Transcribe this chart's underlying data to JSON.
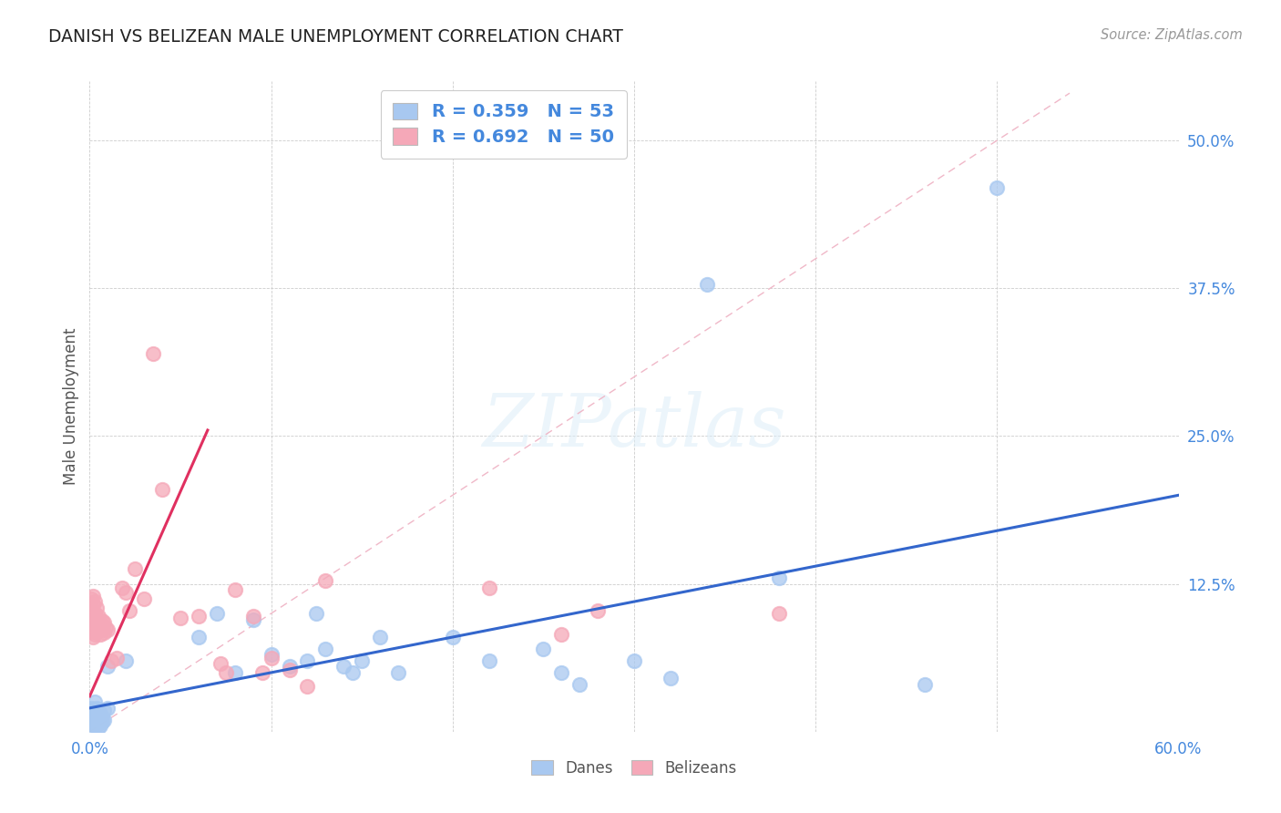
{
  "title": "DANISH VS BELIZEAN MALE UNEMPLOYMENT CORRELATION CHART",
  "source": "Source: ZipAtlas.com",
  "ylabel": "Male Unemployment",
  "xlim": [
    0.0,
    0.6
  ],
  "ylim": [
    0.0,
    0.55
  ],
  "danes_R": "0.359",
  "danes_N": "53",
  "belizeans_R": "0.692",
  "belizeans_N": "50",
  "danes_color": "#a8c8f0",
  "belizeans_color": "#f5a8b8",
  "danes_line_color": "#3366cc",
  "belizeans_line_color": "#e03060",
  "diagonal_color": "#f0b8c8",
  "background_color": "#ffffff",
  "danes_scatter": [
    [
      0.001,
      0.02
    ],
    [
      0.001,
      0.015
    ],
    [
      0.001,
      0.01
    ],
    [
      0.001,
      0.008
    ],
    [
      0.002,
      0.018
    ],
    [
      0.002,
      0.012
    ],
    [
      0.002,
      0.008
    ],
    [
      0.002,
      0.005
    ],
    [
      0.003,
      0.025
    ],
    [
      0.003,
      0.015
    ],
    [
      0.003,
      0.01
    ],
    [
      0.003,
      0.005
    ],
    [
      0.004,
      0.02
    ],
    [
      0.004,
      0.01
    ],
    [
      0.004,
      0.006
    ],
    [
      0.005,
      0.018
    ],
    [
      0.005,
      0.008
    ],
    [
      0.005,
      0.004
    ],
    [
      0.006,
      0.015
    ],
    [
      0.006,
      0.01
    ],
    [
      0.006,
      0.005
    ],
    [
      0.007,
      0.012
    ],
    [
      0.007,
      0.008
    ],
    [
      0.008,
      0.018
    ],
    [
      0.008,
      0.01
    ],
    [
      0.01,
      0.055
    ],
    [
      0.01,
      0.02
    ],
    [
      0.02,
      0.06
    ],
    [
      0.06,
      0.08
    ],
    [
      0.07,
      0.1
    ],
    [
      0.08,
      0.05
    ],
    [
      0.09,
      0.095
    ],
    [
      0.1,
      0.065
    ],
    [
      0.11,
      0.055
    ],
    [
      0.12,
      0.06
    ],
    [
      0.125,
      0.1
    ],
    [
      0.13,
      0.07
    ],
    [
      0.14,
      0.055
    ],
    [
      0.145,
      0.05
    ],
    [
      0.15,
      0.06
    ],
    [
      0.16,
      0.08
    ],
    [
      0.17,
      0.05
    ],
    [
      0.2,
      0.08
    ],
    [
      0.22,
      0.06
    ],
    [
      0.25,
      0.07
    ],
    [
      0.26,
      0.05
    ],
    [
      0.27,
      0.04
    ],
    [
      0.3,
      0.06
    ],
    [
      0.32,
      0.045
    ],
    [
      0.34,
      0.378
    ],
    [
      0.38,
      0.13
    ],
    [
      0.46,
      0.04
    ],
    [
      0.5,
      0.46
    ]
  ],
  "belizeans_scatter": [
    [
      0.001,
      0.085
    ],
    [
      0.001,
      0.095
    ],
    [
      0.001,
      0.105
    ],
    [
      0.001,
      0.112
    ],
    [
      0.002,
      0.08
    ],
    [
      0.002,
      0.09
    ],
    [
      0.002,
      0.098
    ],
    [
      0.002,
      0.108
    ],
    [
      0.002,
      0.115
    ],
    [
      0.003,
      0.082
    ],
    [
      0.003,
      0.09
    ],
    [
      0.003,
      0.1
    ],
    [
      0.003,
      0.11
    ],
    [
      0.004,
      0.085
    ],
    [
      0.004,
      0.095
    ],
    [
      0.004,
      0.105
    ],
    [
      0.005,
      0.088
    ],
    [
      0.005,
      0.098
    ],
    [
      0.006,
      0.082
    ],
    [
      0.006,
      0.092
    ],
    [
      0.007,
      0.086
    ],
    [
      0.007,
      0.094
    ],
    [
      0.008,
      0.084
    ],
    [
      0.008,
      0.092
    ],
    [
      0.009,
      0.088
    ],
    [
      0.01,
      0.086
    ],
    [
      0.012,
      0.06
    ],
    [
      0.015,
      0.062
    ],
    [
      0.018,
      0.122
    ],
    [
      0.02,
      0.118
    ],
    [
      0.022,
      0.102
    ],
    [
      0.025,
      0.138
    ],
    [
      0.03,
      0.112
    ],
    [
      0.035,
      0.32
    ],
    [
      0.04,
      0.205
    ],
    [
      0.05,
      0.096
    ],
    [
      0.06,
      0.098
    ],
    [
      0.072,
      0.058
    ],
    [
      0.075,
      0.05
    ],
    [
      0.08,
      0.12
    ],
    [
      0.09,
      0.098
    ],
    [
      0.095,
      0.05
    ],
    [
      0.1,
      0.062
    ],
    [
      0.11,
      0.052
    ],
    [
      0.12,
      0.038
    ],
    [
      0.13,
      0.128
    ],
    [
      0.22,
      0.122
    ],
    [
      0.26,
      0.082
    ],
    [
      0.28,
      0.102
    ],
    [
      0.38,
      0.1
    ]
  ]
}
